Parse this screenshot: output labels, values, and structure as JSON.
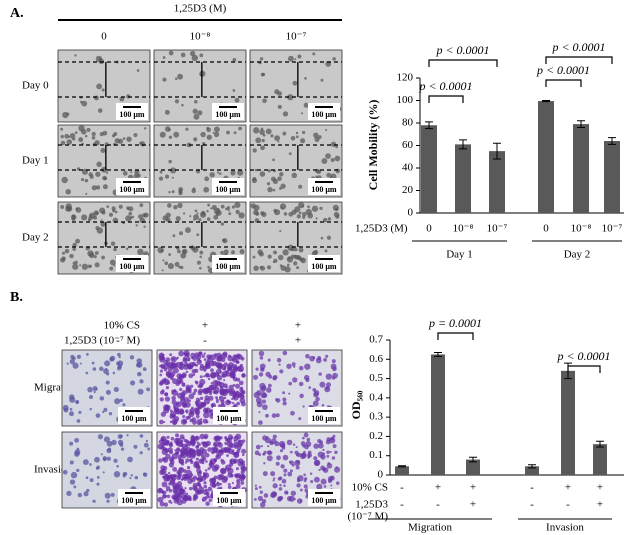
{
  "panel_a": {
    "label": "A.",
    "header": "1,25D3 (M)",
    "columns": [
      "0",
      "10⁻⁸",
      "10⁻⁷"
    ],
    "rows": [
      "Day 0",
      "Day 1",
      "Day 2"
    ],
    "scale_bar": "100 μm"
  },
  "panel_b": {
    "label": "B.",
    "conditions": [
      {
        "label": "10% CS",
        "signs": [
          "-",
          "+",
          "+"
        ]
      },
      {
        "label": "1,25D3 (10⁻⁷ M)",
        "signs": [
          "-",
          "-",
          "+"
        ]
      }
    ],
    "rows": [
      "Migration",
      "Invasion"
    ],
    "scale_bar": "100 μm"
  },
  "chart_data": [
    {
      "type": "bar",
      "color": "#595959",
      "y_label": "Cell Mobility (%)",
      "x_label": "1,25D3 (M)",
      "categories": [
        "0",
        "10⁻⁸",
        "10⁻⁷"
      ],
      "groups": [
        {
          "name": "Day 1",
          "values": [
            78,
            61,
            55
          ],
          "errors": [
            3,
            4,
            7
          ]
        },
        {
          "name": "Day 2",
          "values": [
            99.5,
            79,
            64
          ],
          "errors": [
            0.5,
            3,
            3
          ]
        }
      ],
      "ylim": [
        0,
        120
      ],
      "yticks": [
        0,
        20,
        40,
        60,
        80,
        100,
        120
      ],
      "annotations": [
        "p < 0.0001",
        "p < 0.0001",
        "p < 0.0001",
        "p < 0.0001"
      ]
    },
    {
      "type": "bar",
      "color": "#595959",
      "y_label": "OD₅₆₀",
      "conditions": [
        {
          "label": [
            "10% CS"
          ],
          "signs": [
            "-",
            "+",
            "+"
          ]
        },
        {
          "label": [
            "1,25D3",
            "(10⁻⁷ M)"
          ],
          "signs": [
            "-",
            "-",
            "+"
          ]
        }
      ],
      "groups": [
        {
          "name": "Migration",
          "values": [
            0.045,
            0.625,
            0.08
          ],
          "errors": [
            0.003,
            0.01,
            0.012
          ]
        },
        {
          "name": "Invasion",
          "values": [
            0.045,
            0.54,
            0.16
          ],
          "errors": [
            0.008,
            0.04,
            0.015
          ]
        }
      ],
      "ylim": [
        0,
        0.7
      ],
      "yticks": [
        0,
        0.1,
        0.2,
        0.3,
        0.4,
        0.5,
        0.6,
        0.7
      ],
      "annotations": [
        "p = 0.0001",
        "p < 0.0001"
      ]
    }
  ]
}
